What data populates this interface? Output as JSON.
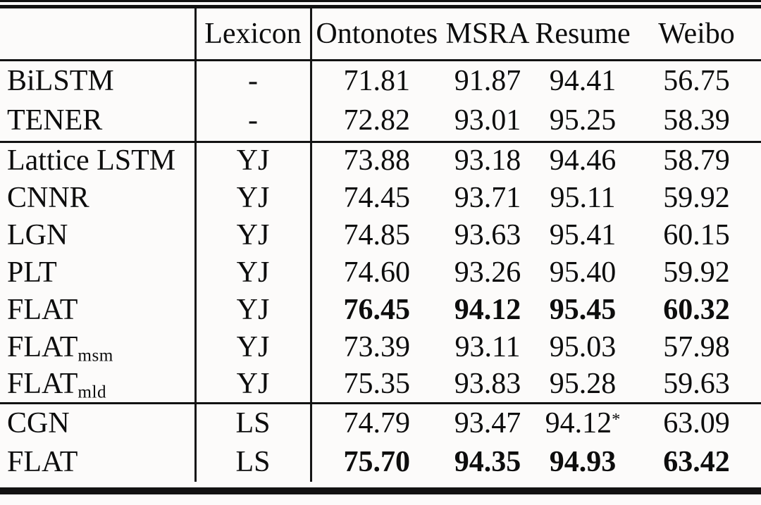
{
  "colors": {
    "background": "#fcfbfa",
    "text": "#0d0d0d",
    "rule": "#121212"
  },
  "table": {
    "header": {
      "model_label": "",
      "lexicon_label": "Lexicon",
      "datasets": [
        "Ontonotes",
        "MSRA",
        "Resume",
        "Weibo"
      ]
    },
    "sections": [
      {
        "rows": [
          {
            "model": "BiLSTM",
            "subscript": "",
            "lexicon": "-",
            "bold_values": false,
            "values": [
              "71.81",
              "91.87",
              "94.41",
              "56.75"
            ],
            "sups": [
              "",
              "",
              "",
              ""
            ]
          },
          {
            "model": "TENER",
            "subscript": "",
            "lexicon": "-",
            "bold_values": false,
            "values": [
              "72.82",
              "93.01",
              "95.25",
              "58.39"
            ],
            "sups": [
              "",
              "",
              "",
              ""
            ]
          }
        ]
      },
      {
        "rows": [
          {
            "model": "Lattice LSTM",
            "subscript": "",
            "lexicon": "YJ",
            "bold_values": false,
            "values": [
              "73.88",
              "93.18",
              "94.46",
              "58.79"
            ],
            "sups": [
              "",
              "",
              "",
              ""
            ]
          },
          {
            "model": "CNNR",
            "subscript": "",
            "lexicon": "YJ",
            "bold_values": false,
            "values": [
              "74.45",
              "93.71",
              "95.11",
              "59.92"
            ],
            "sups": [
              "",
              "",
              "",
              ""
            ]
          },
          {
            "model": "LGN",
            "subscript": "",
            "lexicon": "YJ",
            "bold_values": false,
            "values": [
              "74.85",
              "93.63",
              "95.41",
              "60.15"
            ],
            "sups": [
              "",
              "",
              "",
              ""
            ]
          },
          {
            "model": "PLT",
            "subscript": "",
            "lexicon": "YJ",
            "bold_values": false,
            "values": [
              "74.60",
              "93.26",
              "95.40",
              "59.92"
            ],
            "sups": [
              "",
              "",
              "",
              ""
            ]
          },
          {
            "model": "FLAT",
            "subscript": "",
            "lexicon": "YJ",
            "bold_values": true,
            "values": [
              "76.45",
              "94.12",
              "95.45",
              "60.32"
            ],
            "sups": [
              "",
              "",
              "",
              ""
            ]
          },
          {
            "model": "FLAT",
            "subscript": "msm",
            "lexicon": "YJ",
            "bold_values": false,
            "values": [
              "73.39",
              "93.11",
              "95.03",
              "57.98"
            ],
            "sups": [
              "",
              "",
              "",
              ""
            ]
          },
          {
            "model": "FLAT",
            "subscript": "mld",
            "lexicon": "YJ",
            "bold_values": false,
            "values": [
              "75.35",
              "93.83",
              "95.28",
              "59.63"
            ],
            "sups": [
              "",
              "",
              "",
              ""
            ]
          }
        ]
      },
      {
        "rows": [
          {
            "model": "CGN",
            "subscript": "",
            "lexicon": "LS",
            "bold_values": false,
            "values": [
              "74.79",
              "93.47",
              "94.12",
              "63.09"
            ],
            "sups": [
              "",
              "",
              "*",
              ""
            ]
          },
          {
            "model": "FLAT",
            "subscript": "",
            "lexicon": "LS",
            "bold_values": true,
            "values": [
              "75.70",
              "94.35",
              "94.93",
              "63.42"
            ],
            "sups": [
              "",
              "",
              "",
              ""
            ]
          }
        ]
      }
    ]
  }
}
